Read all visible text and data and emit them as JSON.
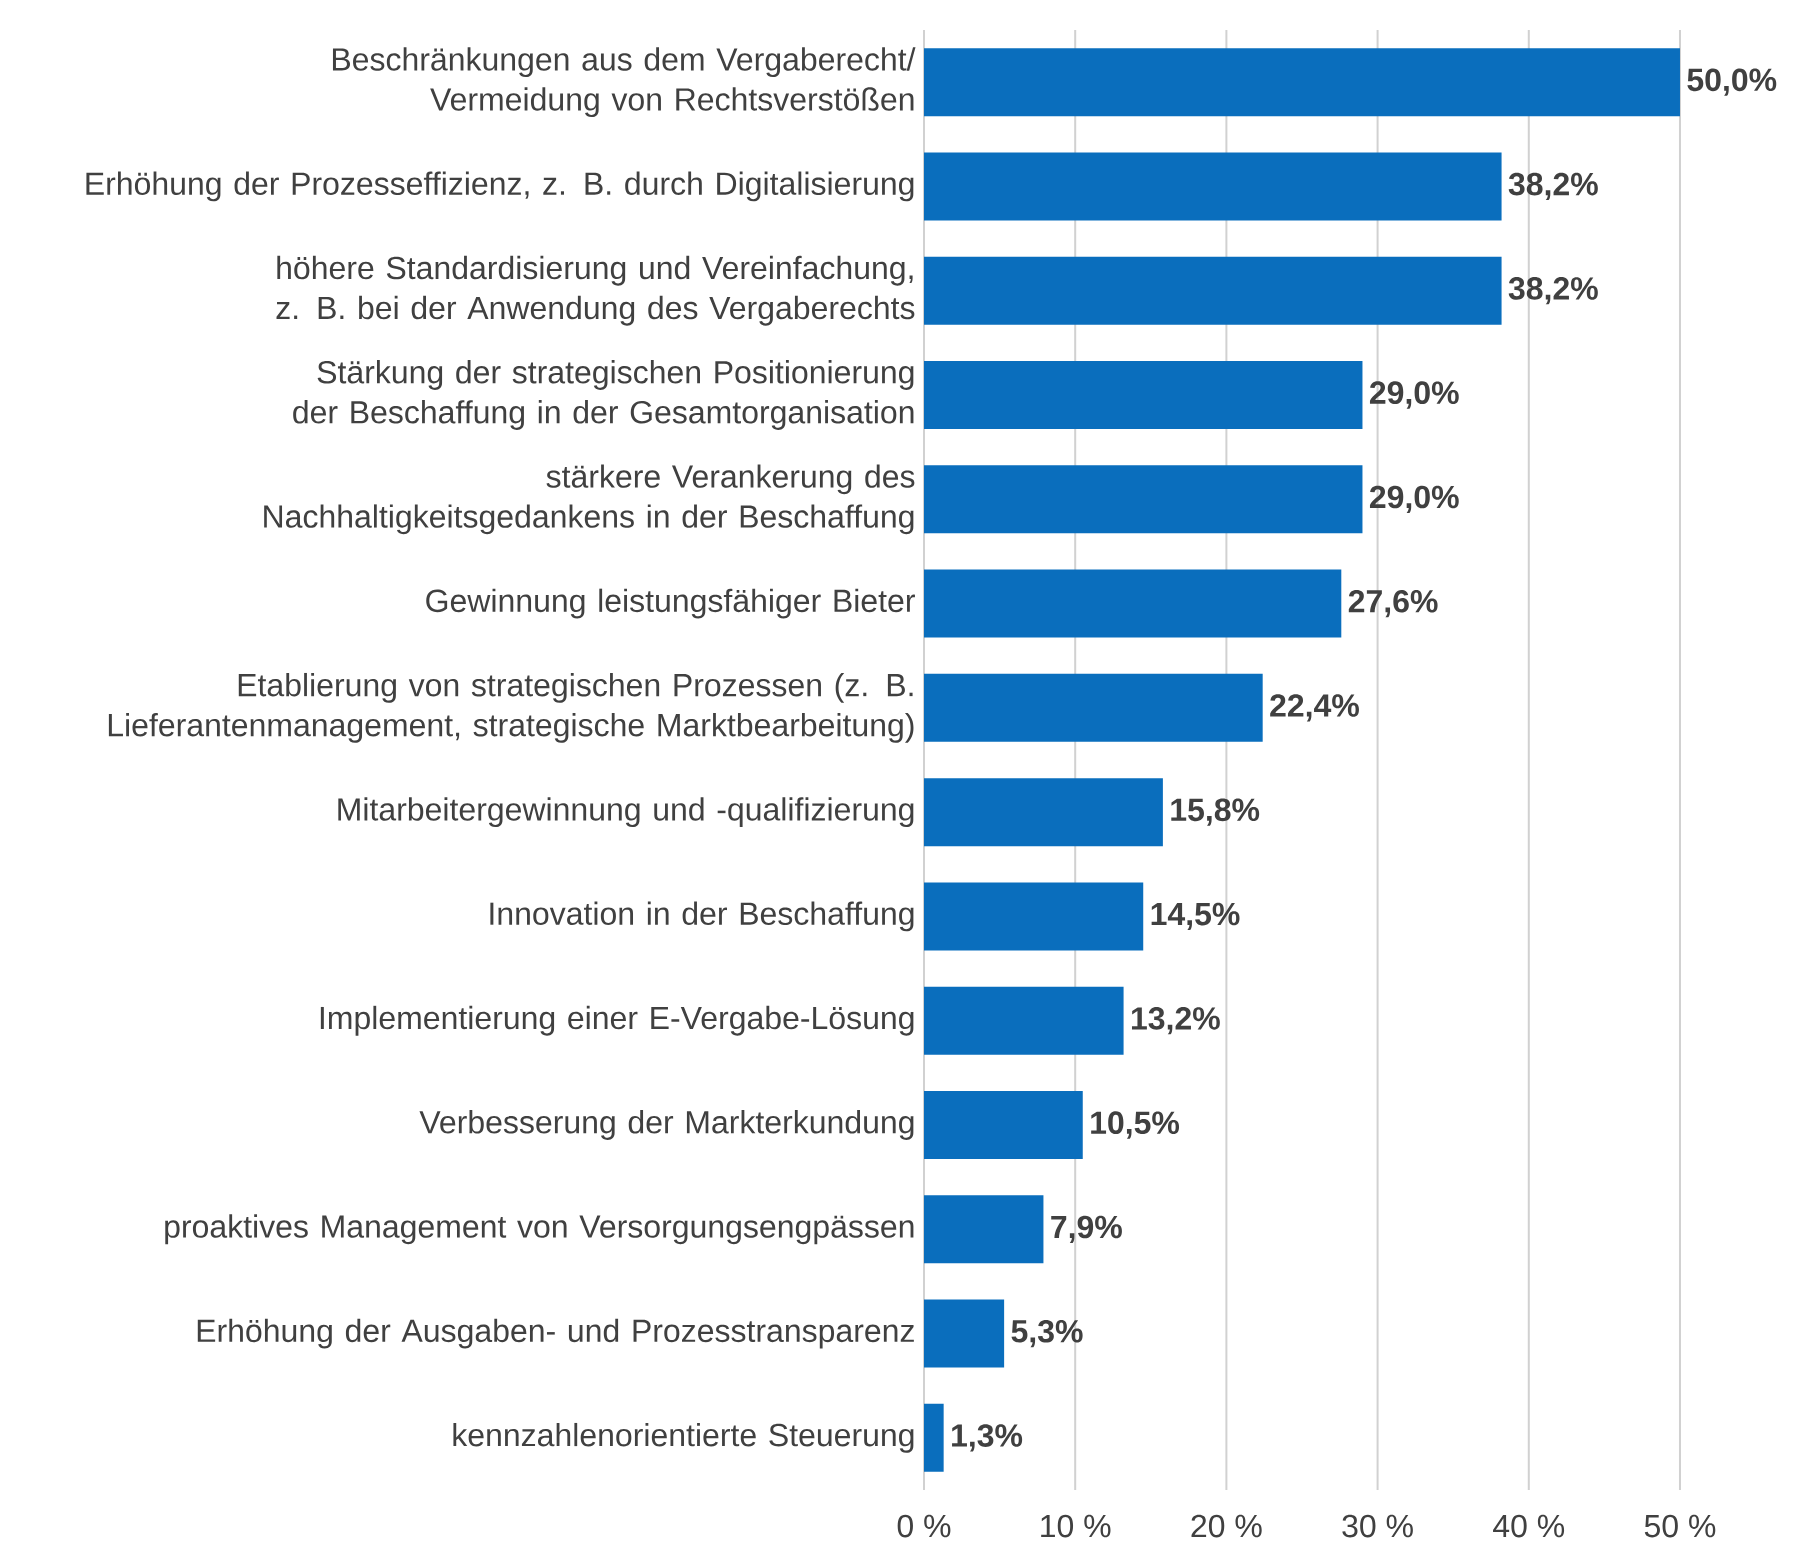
{
  "chart_data": {
    "type": "bar",
    "orientation": "horizontal",
    "color": "#0a6ebd",
    "grid": "x",
    "categories": [
      "Beschränkungen aus dem Vergaberecht/ Vermeidung von Rechtsverstößen",
      "Erhöhung der Prozesseffizienz, z. B. durch Digitalisierung",
      "höhere Standardisierung und Vereinfachung, z. B. bei der Anwendung des Vergaberechts",
      "Stärkung der strategischen Positionierung der Beschaffung in der Gesamtorganisation",
      "stärkere Verankerung des Nachhaltigkeitsgedankens in der Beschaffung",
      "Gewinnung leistungsfähiger Bieter",
      "Etablierung von strategischen Prozessen (z. B. Lieferantenmanagement, strategische Marktbearbeitung)",
      "Mitarbeitergewinnung und -qualifizierung",
      "Innovation in der Beschaffung",
      "Implementierung einer E-Vergabe-Lösung",
      "Verbesserung der Markterkundung",
      "proaktives Management von Versorgungsengpässen",
      "Erhöhung der Ausgaben- und Prozesstransparenz",
      "kennzahlenorientierte Steuerung"
    ],
    "values": [
      50.0,
      38.2,
      38.2,
      29.0,
      29.0,
      27.6,
      22.4,
      15.8,
      14.5,
      13.2,
      10.5,
      7.9,
      5.3,
      1.3
    ],
    "value_labels": [
      "50,0%",
      "38,2%",
      "38,2%",
      "29,0%",
      "29,0%",
      "27,6%",
      "22,4%",
      "15,8%",
      "14,5%",
      "13,2%",
      "10,5%",
      "7,9%",
      "5,3%",
      "1,3%"
    ],
    "xlim": [
      0,
      50
    ],
    "xticks": [
      {
        "value": 0,
        "label": "0 %"
      },
      {
        "value": 10,
        "label": "10 %"
      },
      {
        "value": 20,
        "label": "20 %"
      },
      {
        "value": 30,
        "label": "30 %"
      },
      {
        "value": 40,
        "label": "40 %"
      },
      {
        "value": 50,
        "label": "50 %"
      }
    ]
  }
}
